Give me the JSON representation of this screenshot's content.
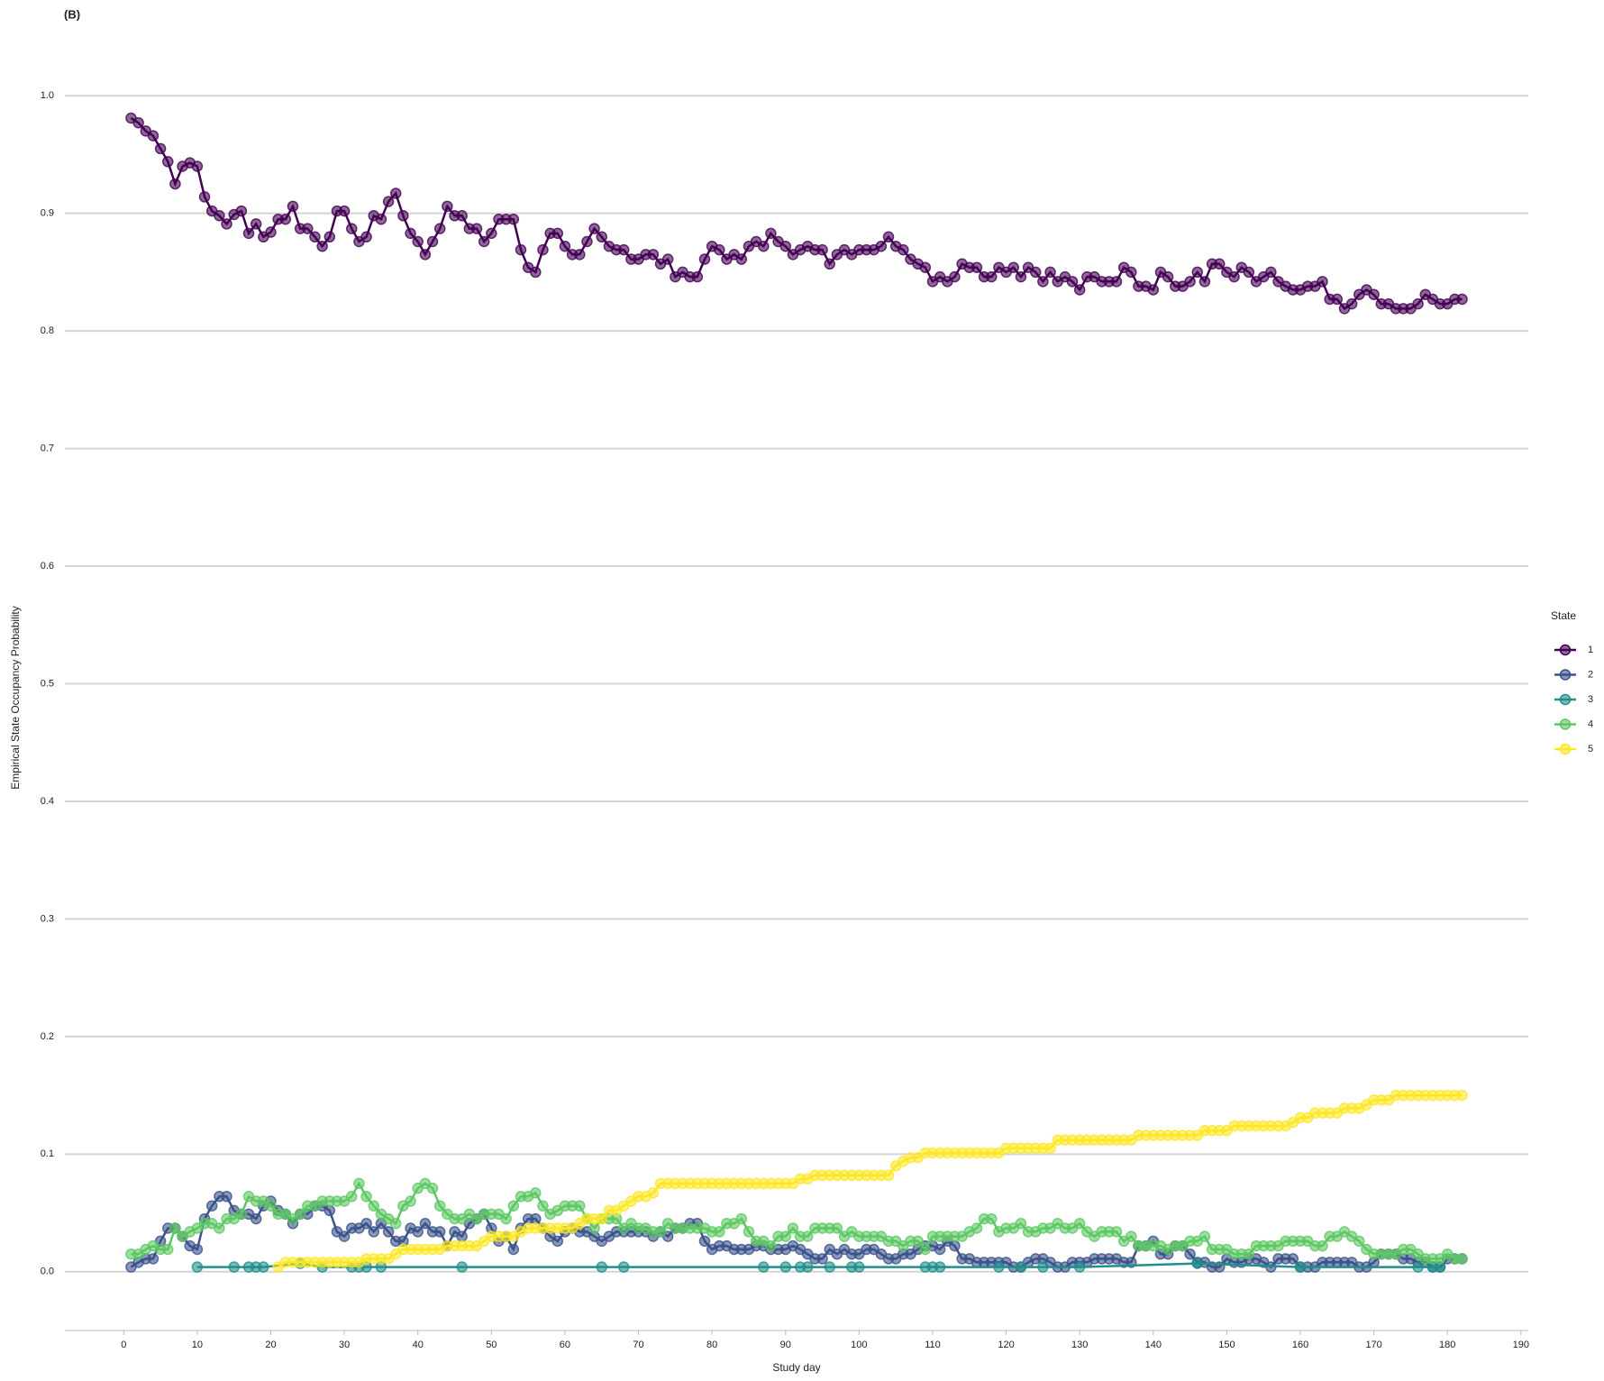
{
  "chart_data": {
    "type": "line",
    "title": "(B)",
    "xlabel": "Study day",
    "ylabel": "Empirical State Occupancy Probability",
    "legend_title": "State",
    "legend_position": "right",
    "grid": true,
    "xlim": [
      -8,
      191
    ],
    "ylim": [
      -0.05,
      1.05
    ],
    "xticks": [
      0,
      10,
      20,
      30,
      40,
      50,
      60,
      70,
      80,
      90,
      100,
      110,
      120,
      130,
      140,
      150,
      160,
      170,
      180,
      190
    ],
    "yticks": [
      {
        "value": 0,
        "label": "0.0"
      },
      {
        "value": 0.1,
        "label": "0.1"
      },
      {
        "value": 0.2,
        "label": "0.2"
      },
      {
        "value": 0.3,
        "label": "0.3"
      },
      {
        "value": 0.4,
        "label": "0.4"
      },
      {
        "value": 0.5,
        "label": "0.5"
      },
      {
        "value": 0.6,
        "label": "0.6"
      },
      {
        "value": 0.7,
        "label": "0.7"
      },
      {
        "value": 0.8,
        "label": "0.8"
      },
      {
        "value": 0.9,
        "label": "0.9"
      },
      {
        "value": 1,
        "label": "1.0"
      }
    ],
    "x": [
      1,
      2,
      3,
      4,
      5,
      6,
      7,
      8,
      9,
      10,
      11,
      12,
      13,
      14,
      15,
      16,
      17,
      18,
      19,
      20,
      21,
      22,
      23,
      24,
      25,
      26,
      27,
      28,
      29,
      30,
      31,
      32,
      33,
      34,
      35,
      36,
      37,
      38,
      39,
      40,
      41,
      42,
      43,
      44,
      45,
      46,
      47,
      48,
      49,
      50,
      51,
      52,
      53,
      54,
      55,
      56,
      57,
      58,
      59,
      60,
      61,
      62,
      63,
      64,
      65,
      66,
      67,
      68,
      69,
      70,
      71,
      72,
      73,
      74,
      75,
      76,
      77,
      78,
      79,
      80,
      81,
      82,
      83,
      84,
      85,
      86,
      87,
      88,
      89,
      90,
      91,
      92,
      93,
      94,
      95,
      96,
      97,
      98,
      99,
      100,
      101,
      102,
      103,
      104,
      105,
      106,
      107,
      108,
      109,
      110,
      111,
      112,
      113,
      114,
      115,
      116,
      117,
      118,
      119,
      120,
      121,
      122,
      123,
      124,
      125,
      126,
      127,
      128,
      129,
      130,
      131,
      132,
      133,
      134,
      135,
      136,
      137,
      138,
      139,
      140,
      141,
      142,
      143,
      144,
      145,
      146,
      147,
      148,
      149,
      150,
      151,
      152,
      153,
      154,
      155,
      156,
      157,
      158,
      159,
      160,
      161,
      162,
      163,
      164,
      165,
      166,
      167,
      168,
      169,
      170,
      171,
      172,
      173,
      174,
      175,
      176,
      177,
      178,
      179,
      180,
      181,
      182
    ],
    "series": [
      {
        "name": "1",
        "color": "#440154",
        "values": [
          0.981,
          0.977,
          0.97,
          0.966,
          0.955,
          0.944,
          0.925,
          0.94,
          0.943,
          0.94,
          0.914,
          0.902,
          0.898,
          0.891,
          0.899,
          0.902,
          0.883,
          0.891,
          0.88,
          0.884,
          0.895,
          0.895,
          0.906,
          0.887,
          0.887,
          0.88,
          0.872,
          0.88,
          0.902,
          0.902,
          0.887,
          0.876,
          0.88,
          0.898,
          0.895,
          0.91,
          0.917,
          0.898,
          0.883,
          0.876,
          0.865,
          0.876,
          0.887,
          0.906,
          0.898,
          0.898,
          0.887,
          0.887,
          0.876,
          0.883,
          0.895,
          0.895,
          0.895,
          0.869,
          0.854,
          0.85,
          0.869,
          0.883,
          0.883,
          0.872,
          0.865,
          0.865,
          0.876,
          0.887,
          0.88,
          0.872,
          0.869,
          0.869,
          0.861,
          0.861,
          0.865,
          0.865,
          0.857,
          0.861,
          0.846,
          0.85,
          0.846,
          0.846,
          0.861,
          0.872,
          0.869,
          0.861,
          0.865,
          0.861,
          0.872,
          0.876,
          0.872,
          0.883,
          0.876,
          0.872,
          0.865,
          0.869,
          0.872,
          0.869,
          0.869,
          0.857,
          0.865,
          0.869,
          0.865,
          0.869,
          0.869,
          0.869,
          0.872,
          0.88,
          0.872,
          0.869,
          0.861,
          0.857,
          0.854,
          0.842,
          0.846,
          0.842,
          0.846,
          0.857,
          0.854,
          0.854,
          0.846,
          0.846,
          0.854,
          0.85,
          0.854,
          0.846,
          0.854,
          0.85,
          0.842,
          0.85,
          0.842,
          0.846,
          0.842,
          0.835,
          0.846,
          0.846,
          0.842,
          0.842,
          0.842,
          0.854,
          0.85,
          0.838,
          0.838,
          0.835,
          0.85,
          0.846,
          0.838,
          0.838,
          0.842,
          0.85,
          0.842,
          0.857,
          0.857,
          0.85,
          0.846,
          0.854,
          0.85,
          0.842,
          0.846,
          0.85,
          0.842,
          0.838,
          0.835,
          0.835,
          0.838,
          0.838,
          0.842,
          0.827,
          0.827,
          0.819,
          0.823,
          0.831,
          0.835,
          0.831,
          0.823,
          0.823,
          0.819,
          0.819,
          0.819,
          0.823,
          0.831,
          0.827,
          0.823,
          0.823,
          0.827,
          0.827
        ]
      },
      {
        "name": "2",
        "color": "#3b528b",
        "values": [
          0.004,
          0.008,
          0.011,
          0.011,
          0.026,
          0.037,
          0.037,
          0.03,
          0.022,
          0.019,
          0.045,
          0.056,
          0.064,
          0.064,
          0.052,
          0.049,
          0.049,
          0.045,
          0.056,
          0.06,
          0.052,
          0.049,
          0.041,
          0.049,
          0.049,
          0.056,
          0.056,
          0.052,
          0.034,
          0.03,
          0.037,
          0.037,
          0.041,
          0.034,
          0.041,
          0.034,
          0.026,
          0.026,
          0.037,
          0.034,
          0.041,
          0.034,
          0.034,
          0.022,
          0.034,
          0.03,
          0.041,
          0.045,
          0.049,
          0.037,
          0.026,
          0.03,
          0.019,
          0.037,
          0.045,
          0.045,
          0.037,
          0.03,
          0.026,
          0.034,
          0.037,
          0.034,
          0.034,
          0.03,
          0.026,
          0.03,
          0.034,
          0.034,
          0.034,
          0.034,
          0.034,
          0.03,
          0.034,
          0.03,
          0.037,
          0.037,
          0.041,
          0.041,
          0.026,
          0.019,
          0.022,
          0.022,
          0.019,
          0.019,
          0.019,
          0.022,
          0.022,
          0.019,
          0.019,
          0.019,
          0.022,
          0.019,
          0.015,
          0.011,
          0.011,
          0.019,
          0.015,
          0.019,
          0.015,
          0.015,
          0.019,
          0.019,
          0.015,
          0.011,
          0.011,
          0.015,
          0.015,
          0.019,
          0.022,
          0.022,
          0.019,
          0.026,
          0.022,
          0.011,
          0.011,
          0.008,
          0.008,
          0.008,
          0.008,
          0.008,
          0.004,
          0.004,
          0.008,
          0.011,
          0.011,
          0.008,
          0.004,
          0.004,
          0.008,
          0.008,
          0.008,
          0.011,
          0.011,
          0.011,
          0.011,
          0.008,
          0.008,
          0.022,
          0.022,
          0.026,
          0.015,
          0.015,
          0.022,
          0.022,
          0.015,
          0.008,
          0.008,
          0.004,
          0.004,
          0.011,
          0.008,
          0.008,
          0.011,
          0.011,
          0.008,
          0.004,
          0.011,
          0.011,
          0.011,
          0.004,
          0.004,
          0.004,
          0.008,
          0.008,
          0.008,
          0.008,
          0.008,
          0.004,
          0.004,
          0.008,
          0.015,
          0.015,
          0.015,
          0.011,
          0.011,
          0.008,
          0.008,
          0.004,
          0.004,
          0.011,
          0.011,
          0.011
        ]
      },
      {
        "name": "3",
        "color": "#21908c",
        "x": [
          10,
          15,
          17,
          18,
          19,
          24,
          27,
          31,
          32,
          33,
          35,
          46,
          65,
          68,
          87,
          90,
          92,
          93,
          96,
          99,
          100,
          109,
          110,
          111,
          119,
          122,
          125,
          130,
          146,
          160,
          176,
          178,
          179
        ],
        "values": [
          0.004,
          0.004,
          0.004,
          0.004,
          0.004,
          0.007,
          0.004,
          0.004,
          0.004,
          0.004,
          0.004,
          0.004,
          0.004,
          0.004,
          0.004,
          0.004,
          0.004,
          0.004,
          0.004,
          0.004,
          0.004,
          0.004,
          0.004,
          0.004,
          0.004,
          0.004,
          0.004,
          0.004,
          0.007,
          0.004,
          0.004,
          0.004,
          0.004
        ]
      },
      {
        "name": "4",
        "color": "#5dc863",
        "values": [
          0.015,
          0.015,
          0.019,
          0.022,
          0.019,
          0.019,
          0.037,
          0.03,
          0.034,
          0.037,
          0.041,
          0.041,
          0.037,
          0.045,
          0.045,
          0.049,
          0.064,
          0.06,
          0.06,
          0.056,
          0.049,
          0.049,
          0.045,
          0.049,
          0.056,
          0.056,
          0.06,
          0.06,
          0.06,
          0.06,
          0.064,
          0.075,
          0.064,
          0.056,
          0.049,
          0.045,
          0.041,
          0.056,
          0.06,
          0.071,
          0.075,
          0.071,
          0.056,
          0.049,
          0.045,
          0.045,
          0.049,
          0.045,
          0.049,
          0.049,
          0.049,
          0.045,
          0.056,
          0.064,
          0.064,
          0.067,
          0.056,
          0.049,
          0.052,
          0.056,
          0.056,
          0.056,
          0.045,
          0.037,
          0.045,
          0.045,
          0.045,
          0.037,
          0.041,
          0.037,
          0.037,
          0.034,
          0.034,
          0.041,
          0.037,
          0.037,
          0.037,
          0.037,
          0.037,
          0.034,
          0.034,
          0.041,
          0.041,
          0.045,
          0.034,
          0.026,
          0.026,
          0.022,
          0.03,
          0.03,
          0.037,
          0.03,
          0.03,
          0.037,
          0.037,
          0.037,
          0.037,
          0.03,
          0.034,
          0.03,
          0.03,
          0.03,
          0.03,
          0.026,
          0.026,
          0.022,
          0.026,
          0.026,
          0.019,
          0.03,
          0.03,
          0.03,
          0.03,
          0.03,
          0.034,
          0.037,
          0.045,
          0.045,
          0.034,
          0.037,
          0.037,
          0.041,
          0.034,
          0.034,
          0.037,
          0.037,
          0.041,
          0.037,
          0.037,
          0.041,
          0.034,
          0.03,
          0.034,
          0.034,
          0.034,
          0.026,
          0.03,
          0.022,
          0.022,
          0.022,
          0.022,
          0.019,
          0.022,
          0.022,
          0.026,
          0.026,
          0.03,
          0.019,
          0.019,
          0.019,
          0.015,
          0.015,
          0.015,
          0.022,
          0.022,
          0.022,
          0.022,
          0.026,
          0.026,
          0.026,
          0.026,
          0.022,
          0.022,
          0.03,
          0.03,
          0.034,
          0.03,
          0.026,
          0.019,
          0.015,
          0.015,
          0.015,
          0.015,
          0.019,
          0.019,
          0.015,
          0.011,
          0.011,
          0.011,
          0.015,
          0.011,
          0.011
        ]
      },
      {
        "name": "5",
        "color": "#fde725",
        "values": [
          null,
          null,
          null,
          null,
          null,
          null,
          null,
          null,
          null,
          null,
          null,
          null,
          null,
          null,
          null,
          null,
          null,
          null,
          null,
          null,
          0.004,
          0.008,
          0.008,
          0.008,
          0.008,
          0.008,
          0.008,
          0.008,
          0.008,
          0.008,
          0.008,
          0.008,
          0.011,
          0.011,
          0.011,
          0.011,
          0.015,
          0.019,
          0.019,
          0.019,
          0.019,
          0.019,
          0.019,
          0.022,
          0.022,
          0.022,
          0.022,
          0.022,
          0.026,
          0.03,
          0.03,
          0.03,
          0.03,
          0.034,
          0.037,
          0.037,
          0.037,
          0.037,
          0.037,
          0.037,
          0.037,
          0.041,
          0.045,
          0.045,
          0.045,
          0.052,
          0.052,
          0.056,
          0.06,
          0.064,
          0.064,
          0.067,
          0.075,
          0.075,
          0.075,
          0.075,
          0.075,
          0.075,
          0.075,
          0.075,
          0.075,
          0.075,
          0.075,
          0.075,
          0.075,
          0.075,
          0.075,
          0.075,
          0.075,
          0.075,
          0.075,
          0.079,
          0.079,
          0.082,
          0.082,
          0.082,
          0.082,
          0.082,
          0.082,
          0.082,
          0.082,
          0.082,
          0.082,
          0.082,
          0.09,
          0.094,
          0.097,
          0.097,
          0.101,
          0.101,
          0.101,
          0.101,
          0.101,
          0.101,
          0.101,
          0.101,
          0.101,
          0.101,
          0.101,
          0.105,
          0.105,
          0.105,
          0.105,
          0.105,
          0.105,
          0.105,
          0.112,
          0.112,
          0.112,
          0.112,
          0.112,
          0.112,
          0.112,
          0.112,
          0.112,
          0.112,
          0.112,
          0.116,
          0.116,
          0.116,
          0.116,
          0.116,
          0.116,
          0.116,
          0.116,
          0.116,
          0.12,
          0.12,
          0.12,
          0.12,
          0.124,
          0.124,
          0.124,
          0.124,
          0.124,
          0.124,
          0.124,
          0.124,
          0.127,
          0.131,
          0.131,
          0.135,
          0.135,
          0.135,
          0.135,
          0.139,
          0.139,
          0.139,
          0.142,
          0.146,
          0.146,
          0.146,
          0.15,
          0.15,
          0.15,
          0.15,
          0.15,
          0.15,
          0.15,
          0.15,
          0.15,
          0.15
        ]
      }
    ]
  }
}
